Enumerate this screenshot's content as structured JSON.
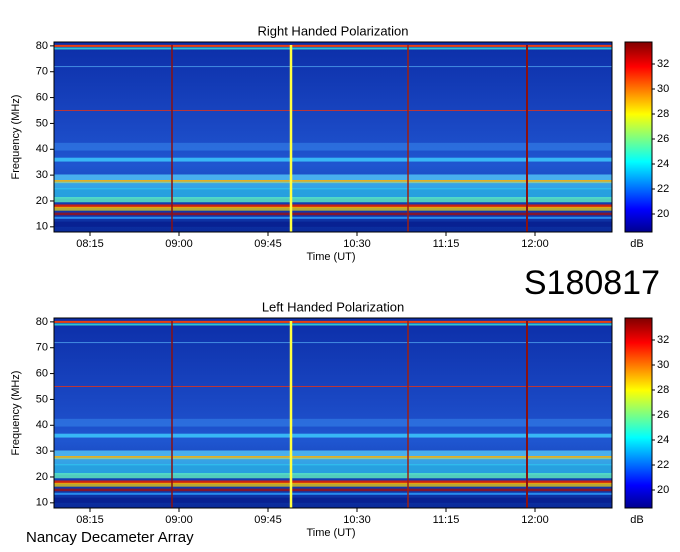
{
  "chart_data": [
    {
      "type": "heatmap",
      "title": "Right Handed Polarization",
      "x_label": "Time (UT)",
      "y_label": "Frequency (MHz)",
      "xticks": [
        "08:15",
        "09:00",
        "09:45",
        "10:30",
        "11:15",
        "12:00"
      ],
      "ylim": [
        8,
        81.5
      ],
      "yticks": [
        10,
        20,
        30,
        40,
        50,
        60,
        70,
        80
      ],
      "colorbar": {
        "label": "dB",
        "lim": [
          18.56,
          33.76
        ],
        "ticks": [
          20,
          22,
          24,
          26,
          28,
          30,
          32
        ]
      }
    },
    {
      "type": "heatmap",
      "title": "Left Handed Polarization",
      "x_label": "Time (UT)",
      "y_label": "Frequency (MHz)",
      "xticks": [
        "08:15",
        "09:00",
        "09:45",
        "10:30",
        "11:15",
        "12:00"
      ],
      "ylim": [
        8,
        81.5
      ],
      "yticks": [
        10,
        20,
        30,
        40,
        50,
        60,
        70,
        80
      ],
      "colorbar": {
        "label": "dB",
        "lim": [
          18.56,
          33.76
        ],
        "ticks": [
          20,
          22,
          24,
          26,
          28,
          30,
          32
        ]
      }
    }
  ],
  "header": {
    "code": "S180817"
  },
  "footer": {
    "source": "Nancay Decameter Array"
  }
}
